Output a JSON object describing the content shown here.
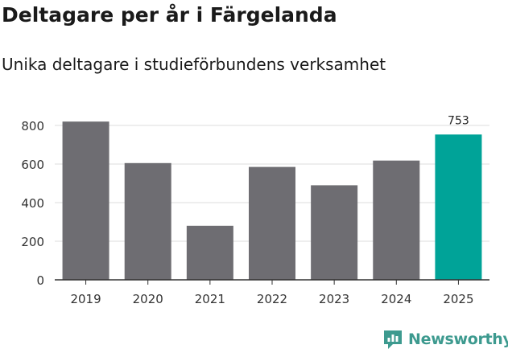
{
  "header": {
    "title": "Deltagare per år i Färgelanda",
    "subtitle": "Unika deltagare i studieförbundens verksamhet"
  },
  "brand": {
    "name": "Newsworthy"
  },
  "colors": {
    "bar": "#6e6d72",
    "highlight": "#00a398",
    "grid": "#dddddd",
    "axis": "#333333",
    "brand": "#3d9a8f"
  },
  "chart_data": {
    "type": "bar",
    "categories": [
      "2019",
      "2020",
      "2021",
      "2022",
      "2023",
      "2024",
      "2025"
    ],
    "values": [
      820,
      605,
      280,
      585,
      490,
      618,
      753
    ],
    "highlight_index": 6,
    "data_labels": {
      "6": "753"
    },
    "yticks": [
      0,
      200,
      400,
      600,
      800
    ],
    "ylim": [
      0,
      870
    ],
    "grid": true
  }
}
